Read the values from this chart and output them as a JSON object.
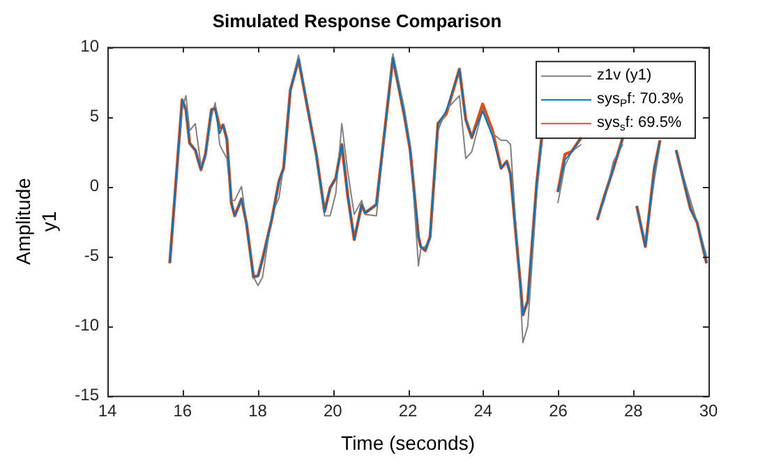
{
  "chart_data": {
    "type": "line",
    "title": "Simulated Response Comparison",
    "xlabel": "Time (seconds)",
    "ylabel": "Amplitude\ny1",
    "x": [
      15.66,
      15.99,
      16.09,
      16.19,
      16.34,
      16.49,
      16.61,
      16.77,
      16.87,
      16.99,
      17.08,
      17.18,
      17.3,
      17.39,
      17.57,
      17.7,
      17.89,
      18.01,
      18.13,
      18.38,
      18.57,
      18.69,
      18.87,
      19.09,
      19.31,
      19.56,
      19.78,
      19.93,
      20.08,
      20.24,
      20.4,
      20.57,
      20.77,
      20.86,
      21.16,
      21.6,
      21.91,
      22.06,
      22.28,
      22.34,
      22.46,
      22.59,
      22.8,
      23.02,
      23.37,
      23.54,
      23.7,
      23.99,
      24.25,
      24.48,
      24.63,
      24.73,
      25.0,
      25.06,
      25.19,
      25.43,
      25.56,
      25.7,
      25.99,
      26.18,
      26.36,
      26.61,
      26.8,
      27.04,
      27.23,
      27.47,
      27.72,
      27.9,
      28.09,
      28.32,
      28.56,
      28.71,
      28.9,
      29.14,
      29.52,
      29.7,
      29.95
    ],
    "series": [
      {
        "name": "z1v (y1)",
        "color": "#808080",
        "values": [
          -5.3,
          5.5,
          6.5,
          4.0,
          4.5,
          1.5,
          2.0,
          5.0,
          6.0,
          3.0,
          2.5,
          2.0,
          -1.0,
          -1.0,
          0.0,
          -2.5,
          -6.5,
          -7.1,
          -6.5,
          -2.0,
          -0.8,
          1.5,
          7.0,
          9.4,
          6.0,
          2.0,
          -2.1,
          -2.1,
          -0.5,
          4.5,
          1.0,
          -2.0,
          -1.0,
          -2.0,
          -2.1,
          9.5,
          5.5,
          3.0,
          -5.7,
          -4.5,
          -4.3,
          -3.8,
          4.0,
          5.5,
          6.5,
          2.0,
          2.5,
          5.5,
          3.8,
          3.3,
          3.3,
          3.0,
          -8.0,
          -11.2,
          -10.0,
          -0.5,
          3.0,
          null,
          -1.2,
          1.5,
          2.5,
          3.0,
          null,
          -2.3,
          -1.0,
          1.8,
          3.0,
          null,
          -1.5,
          -4.0,
          0.5,
          3.0,
          null,
          2.5,
          -1.0,
          -2.6,
          -5.0
        ]
      },
      {
        "name": "sys$_{P}$f: 70.3%",
        "color": "#0072bd",
        "values": [
          -5.5,
          6.2,
          5.5,
          3.1,
          2.6,
          1.2,
          2.3,
          5.5,
          5.6,
          3.8,
          4.4,
          3.4,
          -1.2,
          -2.1,
          -0.9,
          -2.6,
          -6.5,
          -6.4,
          -5.2,
          -2.3,
          0.4,
          1.3,
          6.9,
          9.1,
          5.9,
          2.3,
          -1.8,
          -0.1,
          0.6,
          3.0,
          -0.7,
          -3.8,
          -1.3,
          -1.9,
          -1.3,
          9.2,
          5.0,
          2.6,
          -3.6,
          -4.3,
          -4.6,
          -3.6,
          4.5,
          5.4,
          8.4,
          4.8,
          3.5,
          5.4,
          3.6,
          1.3,
          1.8,
          0.9,
          -7.2,
          -9.2,
          -8.2,
          0.3,
          3.4,
          null,
          -0.4,
          1.9,
          2.5,
          3.5,
          null,
          -2.4,
          -0.7,
          1.3,
          3.5,
          null,
          -1.4,
          -4.3,
          1.3,
          3.3,
          null,
          2.6,
          -1.6,
          -2.6,
          -5.5
        ]
      },
      {
        "name": "sys$_{s}$f: 69.5%",
        "color": "#d95319",
        "values": [
          -5.5,
          6.2,
          5.5,
          3.1,
          2.6,
          1.2,
          2.3,
          5.5,
          5.6,
          4.2,
          4.4,
          3.4,
          -1.2,
          -2.1,
          -0.9,
          -2.6,
          -6.5,
          -6.4,
          -5.2,
          -2.3,
          0.4,
          1.3,
          6.9,
          9.1,
          5.9,
          2.3,
          -1.8,
          -0.1,
          0.6,
          3.0,
          -0.7,
          -3.8,
          -1.3,
          -1.9,
          -1.3,
          9.2,
          5.0,
          2.6,
          -3.6,
          -4.3,
          -4.6,
          -3.6,
          4.5,
          5.2,
          8.4,
          4.8,
          3.5,
          5.9,
          4.0,
          1.3,
          1.8,
          0.9,
          -7.2,
          -9.2,
          -8.2,
          0.3,
          3.5,
          null,
          -0.4,
          2.3,
          2.5,
          3.5,
          null,
          -2.4,
          -0.7,
          1.3,
          3.5,
          null,
          -1.4,
          -4.3,
          1.3,
          3.3,
          null,
          2.6,
          -1.6,
          -2.6,
          -5.5
        ]
      }
    ],
    "xlim": [
      14,
      30
    ],
    "xticks": [
      14,
      16,
      18,
      20,
      22,
      24,
      26,
      28,
      30
    ],
    "ylim": [
      -15,
      10
    ],
    "yticks": [
      -15,
      -10,
      -5,
      0,
      5,
      10
    ],
    "grid": false,
    "legend": "top right"
  }
}
